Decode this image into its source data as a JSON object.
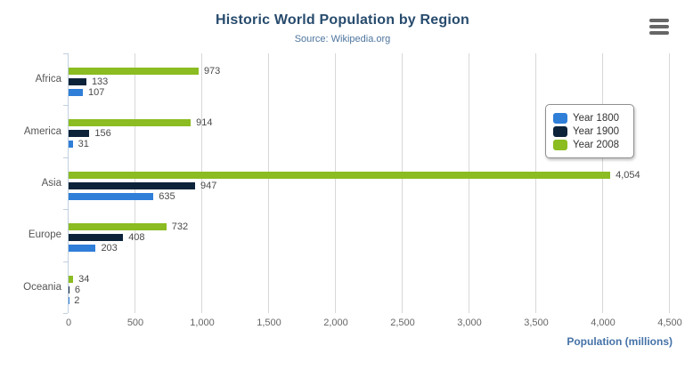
{
  "chart_data": {
    "type": "bar",
    "orientation": "horizontal",
    "title": "Historic World Population by Region",
    "subtitle": "Source: Wikipedia.org",
    "categories": [
      "Africa",
      "America",
      "Asia",
      "Europe",
      "Oceania"
    ],
    "series": [
      {
        "name": "Year 1800",
        "color": "#2f7ed8",
        "values": [
          107,
          31,
          635,
          203,
          2
        ]
      },
      {
        "name": "Year 1900",
        "color": "#0d233a",
        "values": [
          133,
          156,
          947,
          408,
          6
        ]
      },
      {
        "name": "Year 2008",
        "color": "#8bbc21",
        "values": [
          973,
          914,
          4054,
          732,
          34
        ]
      }
    ],
    "bar_order_top_to_bottom": [
      "Year 2008",
      "Year 1900",
      "Year 1800"
    ],
    "xlabel": "Population (millions)",
    "xlim": [
      0,
      4500
    ],
    "tick_interval": 500,
    "tick_labels": [
      "0",
      "500",
      "1,000",
      "1,500",
      "2,000",
      "2,500",
      "3,000",
      "3,500",
      "4,000",
      "4,500"
    ],
    "grid": true,
    "legend_position": "right-inside",
    "data_labels_visible": true
  },
  "ui": {
    "menu_icon": "hamburger-menu-icon",
    "colors": {
      "title": "#274b6d",
      "subtitle": "#4d759e",
      "gridline": "#d8d8d8",
      "category_axis": "#c0d0e0",
      "tick_label": "#666666",
      "data_label": "#4a4a4a",
      "axis_title": "#4572a7",
      "menu_icon": "#666666",
      "legend_border": "#909090"
    }
  }
}
